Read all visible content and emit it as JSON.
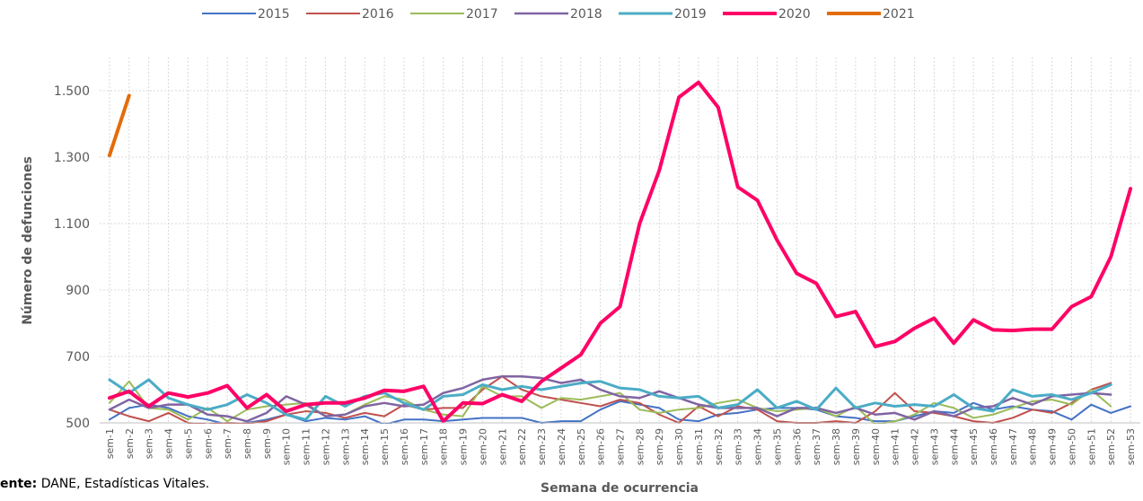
{
  "chart_data": {
    "type": "line",
    "y_label": "Número de defunciones",
    "x_label": "Semana de ocurrencia",
    "source_label": "ente:",
    "source": "DANE, Estadísticas Vitales.",
    "categories": [
      "sem-1",
      "sem-2",
      "sem-3",
      "sem-4",
      "sem-5",
      "sem-6",
      "sem-7",
      "sem-8",
      "sem-9",
      "sem-10",
      "sem-11",
      "sem-12",
      "sem-13",
      "sem-14",
      "sem-15",
      "sem-16",
      "sem-17",
      "sem-18",
      "sem-19",
      "sem-20",
      "sem-21",
      "sem-22",
      "sem-23",
      "sem-24",
      "sem-25",
      "sem-26",
      "sem-27",
      "sem-28",
      "sem-29",
      "sem-30",
      "sem-31",
      "sem-32",
      "sem-33",
      "sem-34",
      "sem-35",
      "sem-36",
      "sem-37",
      "sem-38",
      "sem-39",
      "sem-40",
      "sem-41",
      "sem-42",
      "sem-43",
      "sem-44",
      "sem-45",
      "sem-46",
      "sem-47",
      "sem-48",
      "sem-49",
      "sem-50",
      "sem-51",
      "sem-52",
      "sem-53"
    ],
    "ylim": [
      500,
      1600
    ],
    "yticks": [
      {
        "value": 500,
        "label": "500"
      },
      {
        "value": 700,
        "label": "700"
      },
      {
        "value": 900,
        "label": "900"
      },
      {
        "value": 1100,
        "label": "1.100"
      },
      {
        "value": 1300,
        "label": "1.300"
      },
      {
        "value": 1500,
        "label": "1.500"
      }
    ],
    "grid": true,
    "legend": "top",
    "series": [
      {
        "name": "2015",
        "color": "#4472c4",
        "width": 2,
        "values": [
          510,
          545,
          555,
          545,
          520,
          510,
          495,
          500,
          510,
          525,
          505,
          515,
          510,
          520,
          495,
          510,
          510,
          505,
          510,
          515,
          515,
          515,
          500,
          505,
          505,
          540,
          565,
          555,
          545,
          510,
          505,
          525,
          530,
          540,
          545,
          545,
          540,
          520,
          515,
          505,
          505,
          520,
          535,
          530,
          560,
          540,
          550,
          540,
          535,
          510,
          555,
          530,
          550
        ]
      },
      {
        "name": "2016",
        "color": "#c0504d",
        "width": 2,
        "values": [
          540,
          520,
          505,
          530,
          500,
          495,
          500,
          498,
          505,
          525,
          535,
          530,
          515,
          530,
          520,
          555,
          540,
          545,
          545,
          600,
          640,
          600,
          580,
          570,
          560,
          550,
          570,
          560,
          525,
          500,
          550,
          520,
          550,
          540,
          505,
          500,
          500,
          505,
          500,
          535,
          590,
          535,
          530,
          520,
          505,
          500,
          515,
          540,
          530,
          560,
          600,
          620,
          null
        ]
      },
      {
        "name": "2017",
        "color": "#9bbb59",
        "width": 2,
        "values": [
          560,
          625,
          545,
          540,
          510,
          545,
          505,
          540,
          550,
          555,
          560,
          520,
          525,
          555,
          580,
          570,
          540,
          525,
          520,
          610,
          580,
          580,
          545,
          575,
          570,
          580,
          590,
          540,
          530,
          540,
          545,
          560,
          570,
          545,
          535,
          540,
          545,
          520,
          550,
          495,
          505,
          525,
          560,
          545,
          515,
          525,
          545,
          565,
          570,
          555,
          600,
          550,
          null
        ]
      },
      {
        "name": "2018",
        "color": "#8064a2",
        "width": 2.5,
        "values": [
          540,
          570,
          545,
          555,
          555,
          525,
          520,
          505,
          530,
          580,
          555,
          520,
          525,
          550,
          560,
          550,
          555,
          590,
          605,
          630,
          640,
          640,
          635,
          620,
          630,
          600,
          580,
          575,
          595,
          575,
          555,
          545,
          545,
          545,
          520,
          545,
          545,
          530,
          545,
          525,
          530,
          510,
          535,
          520,
          545,
          550,
          575,
          555,
          580,
          585,
          590,
          585,
          null
        ]
      },
      {
        "name": "2019",
        "color": "#4bacc6",
        "width": 3,
        "values": [
          630,
          590,
          630,
          575,
          555,
          540,
          555,
          585,
          560,
          525,
          510,
          580,
          550,
          580,
          590,
          560,
          540,
          580,
          585,
          615,
          600,
          610,
          600,
          610,
          620,
          625,
          605,
          600,
          580,
          575,
          580,
          545,
          555,
          600,
          545,
          565,
          540,
          605,
          545,
          560,
          550,
          555,
          550,
          585,
          545,
          535,
          600,
          580,
          585,
          570,
          590,
          615,
          null
        ]
      },
      {
        "name": "2020",
        "color": "#ff0066",
        "width": 4,
        "values": [
          575,
          595,
          550,
          590,
          578,
          590,
          612,
          545,
          585,
          535,
          555,
          560,
          560,
          575,
          598,
          595,
          610,
          505,
          560,
          558,
          585,
          565,
          625,
          665,
          705,
          800,
          850,
          1100,
          1260,
          1480,
          1525,
          1450,
          1210,
          1170,
          1050,
          950,
          920,
          820,
          835,
          730,
          745,
          785,
          815,
          740,
          810,
          780,
          778,
          782,
          782,
          850,
          880,
          1000,
          1205
        ]
      },
      {
        "name": "2021",
        "color": "#e46c0a",
        "width": 4,
        "values": [
          1305,
          1485,
          null,
          null,
          null,
          null,
          null,
          null,
          null,
          null,
          null,
          null,
          null,
          null,
          null,
          null,
          null,
          null,
          null,
          null,
          null,
          null,
          null,
          null,
          null,
          null,
          null,
          null,
          null,
          null,
          null,
          null,
          null,
          null,
          null,
          null,
          null,
          null,
          null,
          null,
          null,
          null,
          null,
          null,
          null,
          null,
          null,
          null,
          null,
          null,
          null,
          null,
          null
        ]
      }
    ]
  }
}
